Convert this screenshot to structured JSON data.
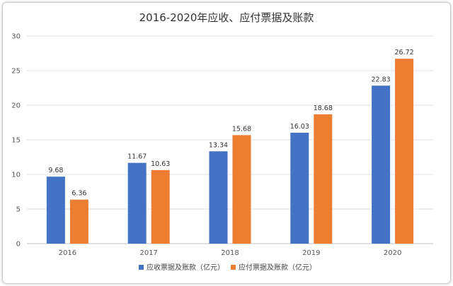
{
  "chart_data": {
    "type": "bar",
    "title": "2016-2020年应收、应付票据及账款",
    "categories": [
      "2016",
      "2017",
      "2018",
      "2019",
      "2020"
    ],
    "series": [
      {
        "name": "应收票据及账款（亿元）",
        "values": [
          9.68,
          11.67,
          13.34,
          16.03,
          22.83
        ],
        "color": "#4472c4"
      },
      {
        "name": "应付票据及账款（亿元）",
        "values": [
          6.36,
          10.63,
          15.68,
          18.68,
          26.72
        ],
        "color": "#ed7d31"
      }
    ],
    "value_labels": [
      [
        "9.68",
        "11.67",
        "13.34",
        "16.03",
        "22.83"
      ],
      [
        "6.36",
        "10.63",
        "15.68",
        "18.68",
        "26.72"
      ]
    ],
    "ylim": [
      0,
      30
    ],
    "yticks": [
      "0",
      "5",
      "10",
      "15",
      "20",
      "25",
      "30"
    ],
    "grid": true,
    "legend_position": "bottom"
  }
}
